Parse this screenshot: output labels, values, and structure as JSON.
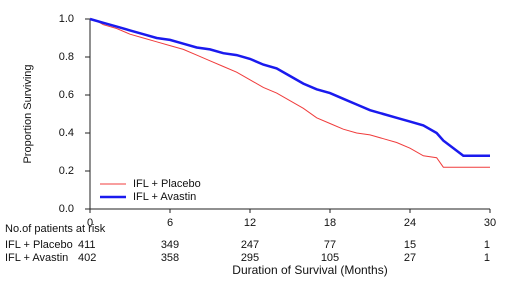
{
  "chart_data": {
    "type": "line",
    "xlabel": "Duration of Survival (Months)",
    "ylabel": "Proportion Surviving",
    "xlim": [
      0,
      30
    ],
    "xticks": [
      0,
      6,
      12,
      18,
      24,
      30
    ],
    "ylim": [
      0,
      1
    ],
    "yticks": [
      {
        "value": 0,
        "label": "0.0"
      },
      0.2,
      0.4,
      0.6,
      0.8,
      {
        "value": 1,
        "label": "1.0"
      }
    ],
    "legend": "lower left",
    "series": [
      {
        "name": "IFL + Placebo",
        "color": "#f03c3c",
        "width": 1,
        "x": [
          0,
          0.5,
          1,
          2,
          3,
          4,
          5,
          6,
          7,
          8,
          9,
          10,
          11,
          12,
          13,
          14,
          15,
          16,
          17,
          18,
          19,
          20,
          21,
          22,
          23,
          24,
          25,
          26,
          26.5,
          30
        ],
        "values": [
          1.0,
          0.99,
          0.97,
          0.95,
          0.92,
          0.9,
          0.88,
          0.86,
          0.84,
          0.81,
          0.78,
          0.75,
          0.72,
          0.68,
          0.64,
          0.61,
          0.57,
          0.53,
          0.48,
          0.45,
          0.42,
          0.4,
          0.39,
          0.37,
          0.35,
          0.32,
          0.28,
          0.27,
          0.22,
          0.22
        ]
      },
      {
        "name": "IFL + Avastin",
        "color": "#1a1aee",
        "width": 2.5,
        "x": [
          0,
          1,
          2,
          3,
          4,
          5,
          6,
          7,
          8,
          9,
          10,
          11,
          12,
          13,
          14,
          15,
          16,
          17,
          18,
          19,
          20,
          21,
          22,
          23,
          24,
          25,
          26,
          26.5,
          28,
          30
        ],
        "values": [
          1.0,
          0.98,
          0.96,
          0.94,
          0.92,
          0.9,
          0.89,
          0.87,
          0.85,
          0.84,
          0.82,
          0.81,
          0.79,
          0.76,
          0.74,
          0.7,
          0.66,
          0.63,
          0.61,
          0.58,
          0.55,
          0.52,
          0.5,
          0.48,
          0.46,
          0.44,
          0.4,
          0.36,
          0.28,
          0.28
        ]
      }
    ],
    "risk_table": {
      "title": "No.of patients at risk",
      "rows": [
        {
          "values": [
            411,
            349,
            247,
            77,
            15,
            1
          ]
        },
        {
          "values": [
            402,
            358,
            295,
            105,
            27,
            1
          ]
        }
      ]
    }
  }
}
